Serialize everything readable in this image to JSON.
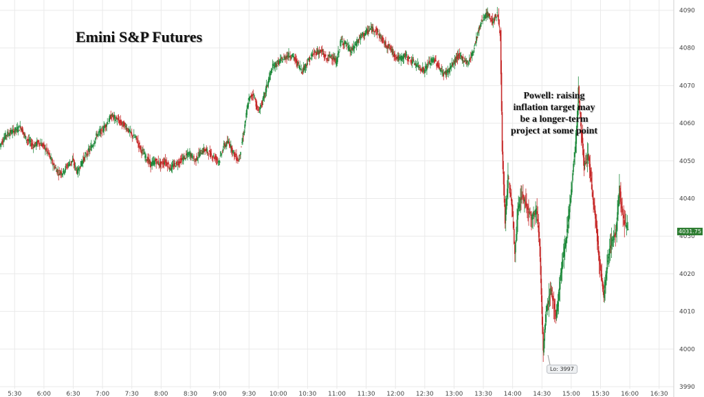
{
  "chart_data": {
    "type": "candlestick",
    "title": "Emini S&P Futures",
    "annotation": "Powell: raising inflation target may be a longer-term project at some point",
    "low_label": "Lo: 3997",
    "last_price": "4031.75",
    "y_ticks": [
      "3990",
      "4000",
      "4010",
      "4020",
      "4030",
      "4040",
      "4050",
      "4060",
      "4070",
      "4080",
      "4090"
    ],
    "x_ticks": [
      "5:30",
      "6:00",
      "6:30",
      "7:00",
      "7:30",
      "8:00",
      "8:30",
      "9:00",
      "9:30",
      "10:00",
      "10:30",
      "11:00",
      "11:30",
      "12:00",
      "12:30",
      "13:00",
      "13:30",
      "14:00",
      "14:30",
      "15:00",
      "15:30",
      "16:00",
      "16:30"
    ],
    "ylim": [
      3990,
      4092
    ],
    "xlim": [
      "5:15",
      "16:45"
    ],
    "grid": true,
    "colors": {
      "up": "#1f8a3c",
      "down": "#c62828"
    },
    "series": [
      {
        "t": "5:15",
        "v": 4054
      },
      {
        "t": "5:22",
        "v": 4057
      },
      {
        "t": "5:30",
        "v": 4058
      },
      {
        "t": "5:37",
        "v": 4059
      },
      {
        "t": "5:42",
        "v": 4056
      },
      {
        "t": "5:50",
        "v": 4054
      },
      {
        "t": "5:55",
        "v": 4055
      },
      {
        "t": "6:00",
        "v": 4054
      },
      {
        "t": "6:05",
        "v": 4052
      },
      {
        "t": "6:10",
        "v": 4049
      },
      {
        "t": "6:15",
        "v": 4047
      },
      {
        "t": "6:20",
        "v": 4047
      },
      {
        "t": "6:25",
        "v": 4049
      },
      {
        "t": "6:30",
        "v": 4050
      },
      {
        "t": "6:35",
        "v": 4047
      },
      {
        "t": "6:40",
        "v": 4050
      },
      {
        "t": "6:45",
        "v": 4052
      },
      {
        "t": "6:50",
        "v": 4054
      },
      {
        "t": "6:55",
        "v": 4057
      },
      {
        "t": "7:00",
        "v": 4058
      },
      {
        "t": "7:05",
        "v": 4060
      },
      {
        "t": "7:10",
        "v": 4062
      },
      {
        "t": "7:15",
        "v": 4061
      },
      {
        "t": "7:20",
        "v": 4060
      },
      {
        "t": "7:25",
        "v": 4059
      },
      {
        "t": "7:30",
        "v": 4057
      },
      {
        "t": "7:35",
        "v": 4056
      },
      {
        "t": "7:40",
        "v": 4053
      },
      {
        "t": "7:45",
        "v": 4051
      },
      {
        "t": "7:50",
        "v": 4049
      },
      {
        "t": "7:55",
        "v": 4050
      },
      {
        "t": "8:00",
        "v": 4049
      },
      {
        "t": "8:05",
        "v": 4050
      },
      {
        "t": "8:10",
        "v": 4048
      },
      {
        "t": "8:15",
        "v": 4049
      },
      {
        "t": "8:20",
        "v": 4050
      },
      {
        "t": "8:25",
        "v": 4051
      },
      {
        "t": "8:30",
        "v": 4052
      },
      {
        "t": "8:35",
        "v": 4050
      },
      {
        "t": "8:40",
        "v": 4052
      },
      {
        "t": "8:45",
        "v": 4053
      },
      {
        "t": "8:50",
        "v": 4052
      },
      {
        "t": "8:55",
        "v": 4051
      },
      {
        "t": "9:00",
        "v": 4050
      },
      {
        "t": "9:05",
        "v": 4054
      },
      {
        "t": "9:10",
        "v": 4055
      },
      {
        "t": "9:15",
        "v": 4052
      },
      {
        "t": "9:20",
        "v": 4050
      },
      {
        "t": "9:25",
        "v": 4057
      },
      {
        "t": "9:30",
        "v": 4066
      },
      {
        "t": "9:35",
        "v": 4068
      },
      {
        "t": "9:40",
        "v": 4063
      },
      {
        "t": "9:45",
        "v": 4066
      },
      {
        "t": "9:50",
        "v": 4071
      },
      {
        "t": "9:55",
        "v": 4075
      },
      {
        "t": "10:00",
        "v": 4076
      },
      {
        "t": "10:05",
        "v": 4077
      },
      {
        "t": "10:10",
        "v": 4078
      },
      {
        "t": "10:15",
        "v": 4078
      },
      {
        "t": "10:20",
        "v": 4076
      },
      {
        "t": "10:25",
        "v": 4074
      },
      {
        "t": "10:30",
        "v": 4076
      },
      {
        "t": "10:35",
        "v": 4078
      },
      {
        "t": "10:40",
        "v": 4079
      },
      {
        "t": "10:45",
        "v": 4079
      },
      {
        "t": "10:50",
        "v": 4077
      },
      {
        "t": "10:55",
        "v": 4078
      },
      {
        "t": "11:00",
        "v": 4076
      },
      {
        "t": "11:05",
        "v": 4082
      },
      {
        "t": "11:10",
        "v": 4081
      },
      {
        "t": "11:15",
        "v": 4079
      },
      {
        "t": "11:20",
        "v": 4081
      },
      {
        "t": "11:25",
        "v": 4083
      },
      {
        "t": "11:30",
        "v": 4084
      },
      {
        "t": "11:35",
        "v": 4085
      },
      {
        "t": "11:40",
        "v": 4085
      },
      {
        "t": "11:45",
        "v": 4083
      },
      {
        "t": "11:50",
        "v": 4081
      },
      {
        "t": "11:55",
        "v": 4080
      },
      {
        "t": "12:00",
        "v": 4078
      },
      {
        "t": "12:05",
        "v": 4077
      },
      {
        "t": "12:10",
        "v": 4078
      },
      {
        "t": "12:15",
        "v": 4077
      },
      {
        "t": "12:20",
        "v": 4076
      },
      {
        "t": "12:25",
        "v": 4075
      },
      {
        "t": "12:30",
        "v": 4074
      },
      {
        "t": "12:35",
        "v": 4076
      },
      {
        "t": "12:40",
        "v": 4077
      },
      {
        "t": "12:45",
        "v": 4075
      },
      {
        "t": "12:50",
        "v": 4073
      },
      {
        "t": "12:55",
        "v": 4074
      },
      {
        "t": "13:00",
        "v": 4076
      },
      {
        "t": "13:05",
        "v": 4078
      },
      {
        "t": "13:10",
        "v": 4077
      },
      {
        "t": "13:15",
        "v": 4076
      },
      {
        "t": "13:20",
        "v": 4079
      },
      {
        "t": "13:25",
        "v": 4084
      },
      {
        "t": "13:30",
        "v": 4088
      },
      {
        "t": "13:35",
        "v": 4089
      },
      {
        "t": "13:40",
        "v": 4087
      },
      {
        "t": "13:45",
        "v": 4089
      },
      {
        "t": "13:48",
        "v": 4084
      },
      {
        "t": "13:50",
        "v": 4052
      },
      {
        "t": "13:53",
        "v": 4034
      },
      {
        "t": "13:56",
        "v": 4046
      },
      {
        "t": "14:00",
        "v": 4038
      },
      {
        "t": "14:03",
        "v": 4025
      },
      {
        "t": "14:06",
        "v": 4037
      },
      {
        "t": "14:10",
        "v": 4041
      },
      {
        "t": "14:15",
        "v": 4038
      },
      {
        "t": "14:20",
        "v": 4035
      },
      {
        "t": "14:25",
        "v": 4037
      },
      {
        "t": "14:28",
        "v": 4030
      },
      {
        "t": "14:30",
        "v": 4014
      },
      {
        "t": "14:32",
        "v": 3999
      },
      {
        "t": "14:35",
        "v": 4010
      },
      {
        "t": "14:40",
        "v": 4016
      },
      {
        "t": "14:45",
        "v": 4008
      },
      {
        "t": "14:50",
        "v": 4020
      },
      {
        "t": "14:55",
        "v": 4029
      },
      {
        "t": "15:00",
        "v": 4040
      },
      {
        "t": "15:03",
        "v": 4049
      },
      {
        "t": "15:06",
        "v": 4057
      },
      {
        "t": "15:08",
        "v": 4069
      },
      {
        "t": "15:11",
        "v": 4058
      },
      {
        "t": "15:14",
        "v": 4048
      },
      {
        "t": "15:18",
        "v": 4052
      },
      {
        "t": "15:22",
        "v": 4042
      },
      {
        "t": "15:26",
        "v": 4033
      },
      {
        "t": "15:30",
        "v": 4022
      },
      {
        "t": "15:34",
        "v": 4014
      },
      {
        "t": "15:38",
        "v": 4024
      },
      {
        "t": "15:42",
        "v": 4029
      },
      {
        "t": "15:46",
        "v": 4030
      },
      {
        "t": "15:50",
        "v": 4043
      },
      {
        "t": "15:53",
        "v": 4036
      },
      {
        "t": "15:56",
        "v": 4033
      },
      {
        "t": "15:59",
        "v": 4031.75
      }
    ]
  }
}
